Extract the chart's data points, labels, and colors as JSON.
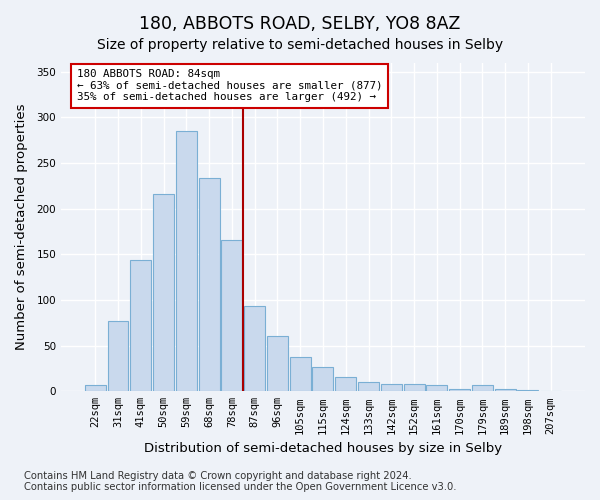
{
  "title": "180, ABBOTS ROAD, SELBY, YO8 8AZ",
  "subtitle": "Size of property relative to semi-detached houses in Selby",
  "xlabel": "Distribution of semi-detached houses by size in Selby",
  "ylabel": "Number of semi-detached properties",
  "bin_labels": [
    "22sqm",
    "31sqm",
    "41sqm",
    "50sqm",
    "59sqm",
    "68sqm",
    "78sqm",
    "87sqm",
    "96sqm",
    "105sqm",
    "115sqm",
    "124sqm",
    "133sqm",
    "142sqm",
    "152sqm",
    "161sqm",
    "170sqm",
    "179sqm",
    "189sqm",
    "198sqm",
    "207sqm"
  ],
  "bar_values": [
    7,
    77,
    144,
    216,
    285,
    233,
    166,
    93,
    61,
    38,
    27,
    16,
    10,
    8,
    8,
    7,
    2,
    7,
    2,
    1,
    0
  ],
  "bar_color": "#c9d9ed",
  "bar_edge_color": "#7aafd4",
  "vline_color": "#aa0000",
  "vline_x": 6.5,
  "annotation_title": "180 ABBOTS ROAD: 84sqm",
  "annotation_line1": "← 63% of semi-detached houses are smaller (877)",
  "annotation_line2": "35% of semi-detached houses are larger (492) →",
  "annotation_box_facecolor": "#ffffff",
  "annotation_box_edgecolor": "#cc0000",
  "footer1": "Contains HM Land Registry data © Crown copyright and database right 2024.",
  "footer2": "Contains public sector information licensed under the Open Government Licence v3.0.",
  "ylim": [
    0,
    360
  ],
  "yticks": [
    0,
    50,
    100,
    150,
    200,
    250,
    300,
    350
  ],
  "bg_color": "#eef2f8",
  "grid_color": "#ffffff",
  "title_fontsize": 12.5,
  "subtitle_fontsize": 10,
  "axis_label_fontsize": 9.5,
  "tick_fontsize": 7.5,
  "footer_fontsize": 7.2
}
